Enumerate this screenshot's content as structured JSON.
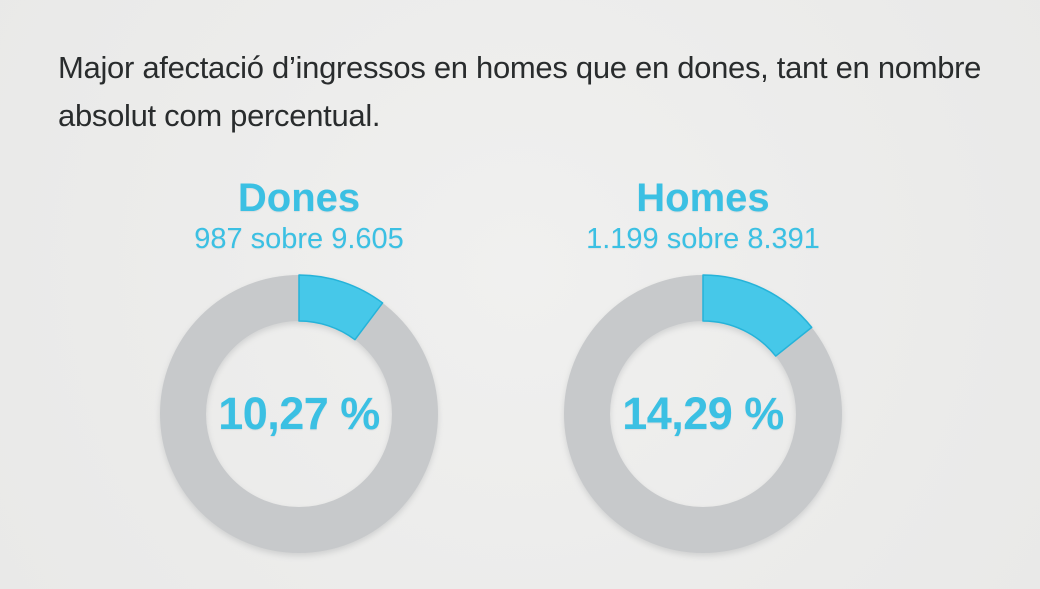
{
  "title": "Major afectació d’ingressos en homes que en dones, tant en nombre absolut com percentual.",
  "colors": {
    "background": "#ededec",
    "title_text": "#292c2d",
    "accent": "#3bc0e3",
    "slice_fill": "#46c8e9",
    "slice_border": "#25b3d9",
    "ring": "#c7c9cb"
  },
  "chart_data": [
    {
      "type": "pie",
      "variant": "donut",
      "label": "Dones",
      "subtitle": "987 sobre 9.605",
      "value_label": "10,27 %",
      "percent": 10.27,
      "numerator": 987,
      "denominator": 9605,
      "slice_start_angle_deg": 0,
      "slice_direction": "clockwise"
    },
    {
      "type": "pie",
      "variant": "donut",
      "label": "Homes",
      "subtitle": "1.199 sobre 8.391",
      "value_label": "14,29 %",
      "percent": 14.29,
      "numerator": 1199,
      "denominator": 8391,
      "slice_start_angle_deg": 0,
      "slice_direction": "clockwise"
    }
  ]
}
